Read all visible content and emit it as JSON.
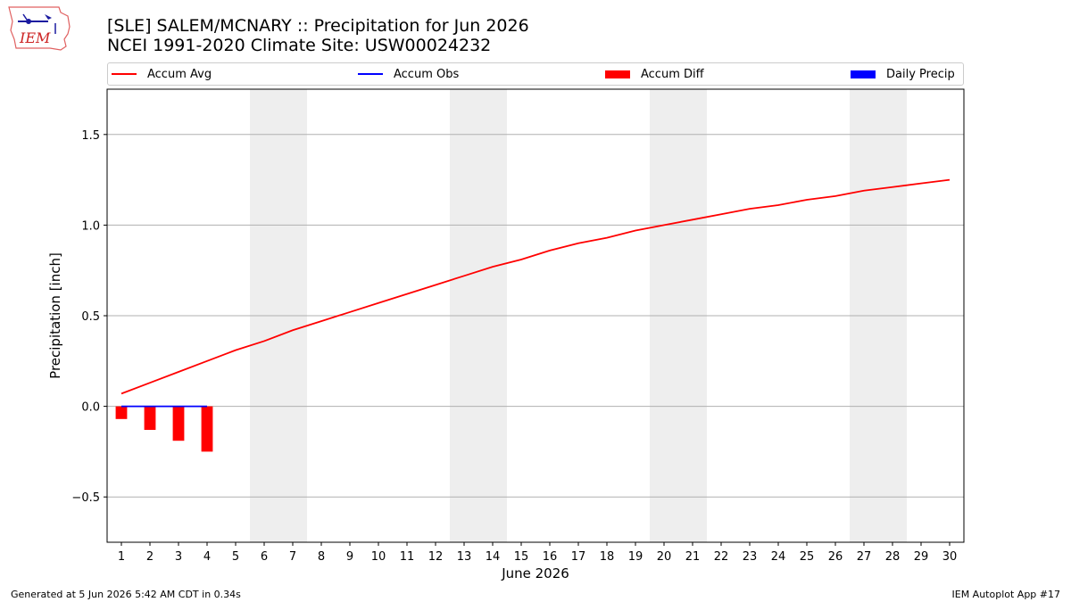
{
  "header": {
    "title_line1": "[SLE] SALEM/MCNARY :: Precipitation for Jun 2026",
    "title_line2": "NCEI 1991-2020 Climate Site: USW00024232",
    "logo_text": "IEM"
  },
  "legend": [
    {
      "label": "Accum Avg",
      "color": "#ff0000",
      "kind": "line"
    },
    {
      "label": "Accum Obs",
      "color": "#0000ff",
      "kind": "line"
    },
    {
      "label": "Accum Diff",
      "color": "#ff0000",
      "kind": "bar"
    },
    {
      "label": "Daily Precip",
      "color": "#0000ff",
      "kind": "bar"
    }
  ],
  "footer": {
    "left": "Generated at 5 Jun 2026 5:42 AM CDT in 0.34s",
    "right": "IEM Autoplot App #17"
  },
  "chart_data": {
    "type": "line",
    "xlabel": "June 2026",
    "ylabel": "Precipitation [inch]",
    "xlim": [
      0.5,
      30.5
    ],
    "ylim": [
      -0.75,
      1.75
    ],
    "yticks": [
      -0.5,
      0.0,
      0.5,
      1.0,
      1.5
    ],
    "ytick_labels": [
      "−0.5",
      "0.0",
      "0.5",
      "1.0",
      "1.5"
    ],
    "xticks": [
      1,
      2,
      3,
      4,
      5,
      6,
      7,
      8,
      9,
      10,
      11,
      12,
      13,
      14,
      15,
      16,
      17,
      18,
      19,
      20,
      21,
      22,
      23,
      24,
      25,
      26,
      27,
      28,
      29,
      30
    ],
    "grid": "horizontal",
    "weekend_shading": [
      [
        6,
        7
      ],
      [
        13,
        14
      ],
      [
        20,
        21
      ],
      [
        27,
        28
      ]
    ],
    "colors": {
      "avg": "#ff0000",
      "obs": "#0000ff",
      "diff": "#ff0000",
      "daily": "#0000ff",
      "weekend": "#eeeeee",
      "grid": "#b0b0b0"
    },
    "series": [
      {
        "name": "Accum Avg",
        "x": [
          1,
          2,
          3,
          4,
          5,
          6,
          7,
          8,
          9,
          10,
          11,
          12,
          13,
          14,
          15,
          16,
          17,
          18,
          19,
          20,
          21,
          22,
          23,
          24,
          25,
          26,
          27,
          28,
          29,
          30
        ],
        "values": [
          0.07,
          0.13,
          0.19,
          0.25,
          0.31,
          0.36,
          0.42,
          0.47,
          0.52,
          0.57,
          0.62,
          0.67,
          0.72,
          0.77,
          0.81,
          0.86,
          0.9,
          0.93,
          0.97,
          1.0,
          1.03,
          1.06,
          1.09,
          1.11,
          1.14,
          1.16,
          1.19,
          1.21,
          1.23,
          1.25
        ]
      },
      {
        "name": "Accum Obs",
        "x": [
          1,
          2,
          3,
          4
        ],
        "values": [
          0.0,
          0.0,
          0.0,
          0.0
        ]
      },
      {
        "name": "Accum Diff",
        "x": [
          1,
          2,
          3,
          4
        ],
        "values": [
          -0.07,
          -0.13,
          -0.19,
          -0.25
        ]
      },
      {
        "name": "Daily Precip",
        "x": [
          1,
          2,
          3,
          4
        ],
        "values": [
          0.0,
          0.0,
          0.0,
          0.0
        ]
      }
    ]
  }
}
